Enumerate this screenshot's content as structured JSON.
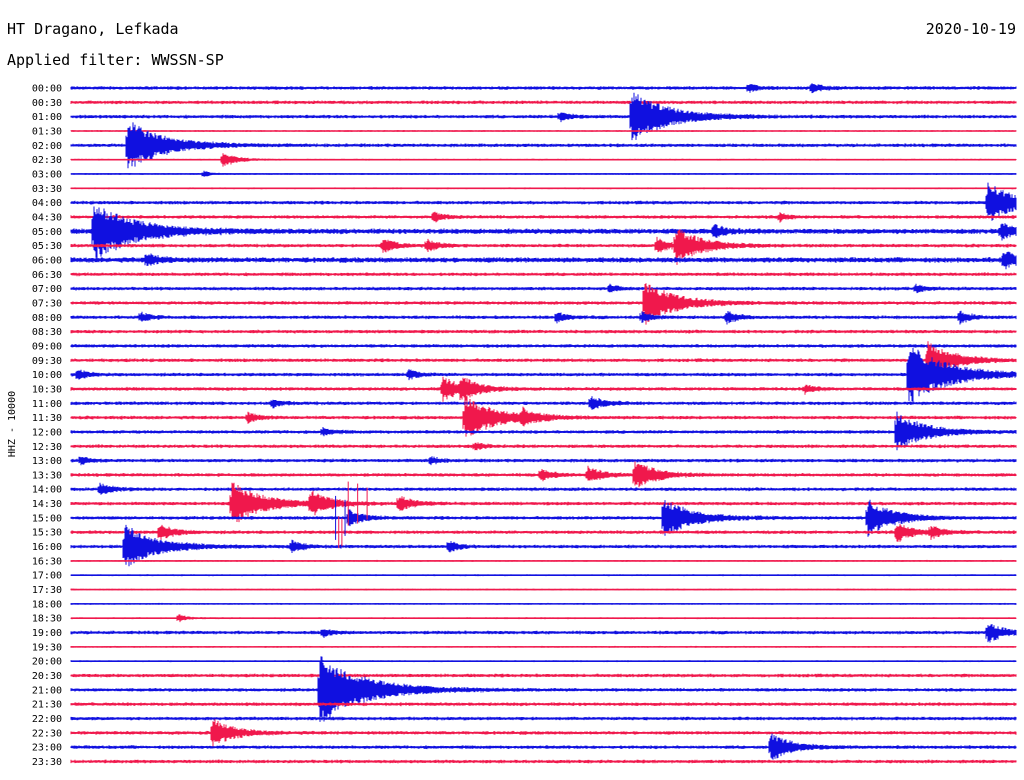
{
  "header": {
    "station": "HT Dragano, Lefkada",
    "date": "2020-10-19",
    "filter_label": "Applied filter: WWSSN-SP"
  },
  "colors": {
    "trace_even": "#1010e0",
    "trace_odd": "#f0184c"
  },
  "chart_data": {
    "type": "line",
    "title": "HT Dragano, Lefkada",
    "ylabel": "HHZ - 10000",
    "rows": [
      "00:00",
      "00:30",
      "01:00",
      "01:30",
      "02:00",
      "02:30",
      "03:00",
      "03:30",
      "04:00",
      "04:30",
      "05:00",
      "05:30",
      "06:00",
      "06:30",
      "07:00",
      "07:30",
      "08:00",
      "08:30",
      "09:00",
      "09:30",
      "10:00",
      "10:30",
      "11:00",
      "11:30",
      "12:00",
      "12:30",
      "13:00",
      "13:30",
      "14:00",
      "14:30",
      "15:00",
      "15:30",
      "16:00",
      "16:30",
      "17:00",
      "17:30",
      "18:00",
      "18:30",
      "19:00",
      "19:30",
      "20:00",
      "20:30",
      "21:00",
      "21:30",
      "22:00",
      "22:30",
      "23:00",
      "23:30"
    ],
    "row_minutes": 30,
    "x_unit": "minutes after row start",
    "noise_level": [
      2,
      2,
      2,
      1,
      2,
      1,
      1,
      1,
      2,
      2,
      3,
      2,
      3,
      2,
      2,
      2,
      2,
      2,
      2,
      2,
      2,
      2,
      2,
      2,
      2,
      2,
      2,
      2,
      2,
      2,
      2,
      2,
      2,
      1,
      1,
      1,
      1,
      1,
      2,
      1,
      1,
      2,
      2,
      2,
      2,
      2,
      2,
      2
    ],
    "events": [
      {
        "row": 0,
        "min": 21.5,
        "amp": 4
      },
      {
        "row": 0,
        "min": 23.5,
        "amp": 5
      },
      {
        "row": 2,
        "min": 15.5,
        "amp": 5
      },
      {
        "row": 2,
        "min": 17.8,
        "amp": 26
      },
      {
        "row": 4,
        "min": 1.8,
        "amp": 26
      },
      {
        "row": 5,
        "min": 4.8,
        "amp": 8
      },
      {
        "row": 6,
        "min": 4.2,
        "amp": 3
      },
      {
        "row": 8,
        "min": 29.1,
        "amp": 20
      },
      {
        "row": 9,
        "min": 11.5,
        "amp": 5
      },
      {
        "row": 9,
        "min": 22.5,
        "amp": 4
      },
      {
        "row": 10,
        "min": 0.7,
        "amp": 30
      },
      {
        "row": 10,
        "min": 20.4,
        "amp": 6
      },
      {
        "row": 10,
        "min": 29.5,
        "amp": 8
      },
      {
        "row": 11,
        "min": 9.9,
        "amp": 7
      },
      {
        "row": 11,
        "min": 11.3,
        "amp": 6
      },
      {
        "row": 11,
        "min": 18.6,
        "amp": 7
      },
      {
        "row": 11,
        "min": 19.2,
        "amp": 18
      },
      {
        "row": 12,
        "min": 2.4,
        "amp": 6
      },
      {
        "row": 12,
        "min": 29.6,
        "amp": 9
      },
      {
        "row": 14,
        "min": 17.1,
        "amp": 4
      },
      {
        "row": 14,
        "min": 26.8,
        "amp": 4
      },
      {
        "row": 15,
        "min": 18.2,
        "amp": 22
      },
      {
        "row": 16,
        "min": 2.2,
        "amp": 5
      },
      {
        "row": 16,
        "min": 15.4,
        "amp": 5
      },
      {
        "row": 16,
        "min": 18.1,
        "amp": 5
      },
      {
        "row": 16,
        "min": 20.8,
        "amp": 6
      },
      {
        "row": 16,
        "min": 28.2,
        "amp": 6
      },
      {
        "row": 19,
        "min": 27.2,
        "amp": 18
      },
      {
        "row": 20,
        "min": 0.2,
        "amp": 5
      },
      {
        "row": 20,
        "min": 10.7,
        "amp": 5
      },
      {
        "row": 20,
        "min": 26.6,
        "amp": 30
      },
      {
        "row": 21,
        "min": 11.8,
        "amp": 12
      },
      {
        "row": 21,
        "min": 12.4,
        "amp": 10
      },
      {
        "row": 21,
        "min": 23.3,
        "amp": 4
      },
      {
        "row": 22,
        "min": 6.4,
        "amp": 4
      },
      {
        "row": 22,
        "min": 16.5,
        "amp": 7
      },
      {
        "row": 23,
        "min": 5.6,
        "amp": 5
      },
      {
        "row": 23,
        "min": 12.5,
        "amp": 22
      },
      {
        "row": 23,
        "min": 14.3,
        "amp": 8
      },
      {
        "row": 24,
        "min": 8.0,
        "amp": 4
      },
      {
        "row": 24,
        "min": 26.2,
        "amp": 20
      },
      {
        "row": 25,
        "min": 12.8,
        "amp": 4
      },
      {
        "row": 26,
        "min": 0.3,
        "amp": 4
      },
      {
        "row": 26,
        "min": 11.4,
        "amp": 4
      },
      {
        "row": 27,
        "min": 14.9,
        "amp": 6
      },
      {
        "row": 27,
        "min": 16.4,
        "amp": 8
      },
      {
        "row": 27,
        "min": 17.9,
        "amp": 14
      },
      {
        "row": 28,
        "min": 0.9,
        "amp": 6
      },
      {
        "row": 29,
        "min": 5.1,
        "amp": 22
      },
      {
        "row": 29,
        "min": 7.6,
        "amp": 12
      },
      {
        "row": 29,
        "min": 10.4,
        "amp": 8
      },
      {
        "row": 30,
        "min": 8.8,
        "amp": 8
      },
      {
        "row": 30,
        "min": 18.8,
        "amp": 20
      },
      {
        "row": 30,
        "min": 25.3,
        "amp": 18
      },
      {
        "row": 31,
        "min": 2.8,
        "amp": 8
      },
      {
        "row": 31,
        "min": 26.2,
        "amp": 10
      },
      {
        "row": 31,
        "min": 27.3,
        "amp": 6
      },
      {
        "row": 32,
        "min": 1.7,
        "amp": 22
      },
      {
        "row": 32,
        "min": 7.0,
        "amp": 6
      },
      {
        "row": 32,
        "min": 12.0,
        "amp": 5
      },
      {
        "row": 37,
        "min": 3.4,
        "amp": 4
      },
      {
        "row": 38,
        "min": 8.0,
        "amp": 4
      },
      {
        "row": 38,
        "min": 29.1,
        "amp": 10
      },
      {
        "row": 42,
        "min": 7.9,
        "amp": 34
      },
      {
        "row": 45,
        "min": 4.5,
        "amp": 14
      },
      {
        "row": 46,
        "min": 22.2,
        "amp": 14
      }
    ],
    "spikes": [
      {
        "row": 29,
        "min": 8.8,
        "amp": 22
      },
      {
        "row": 29,
        "min": 9.1,
        "amp": 20
      },
      {
        "row": 29,
        "min": 9.4,
        "amp": 16
      },
      {
        "row": 30,
        "min": 8.4,
        "amp": 22
      },
      {
        "row": 30,
        "min": 8.7,
        "amp": 18
      },
      {
        "row": 31,
        "min": 8.5,
        "amp": 16
      },
      {
        "row": 31,
        "min": 8.6,
        "amp": 14
      }
    ]
  }
}
